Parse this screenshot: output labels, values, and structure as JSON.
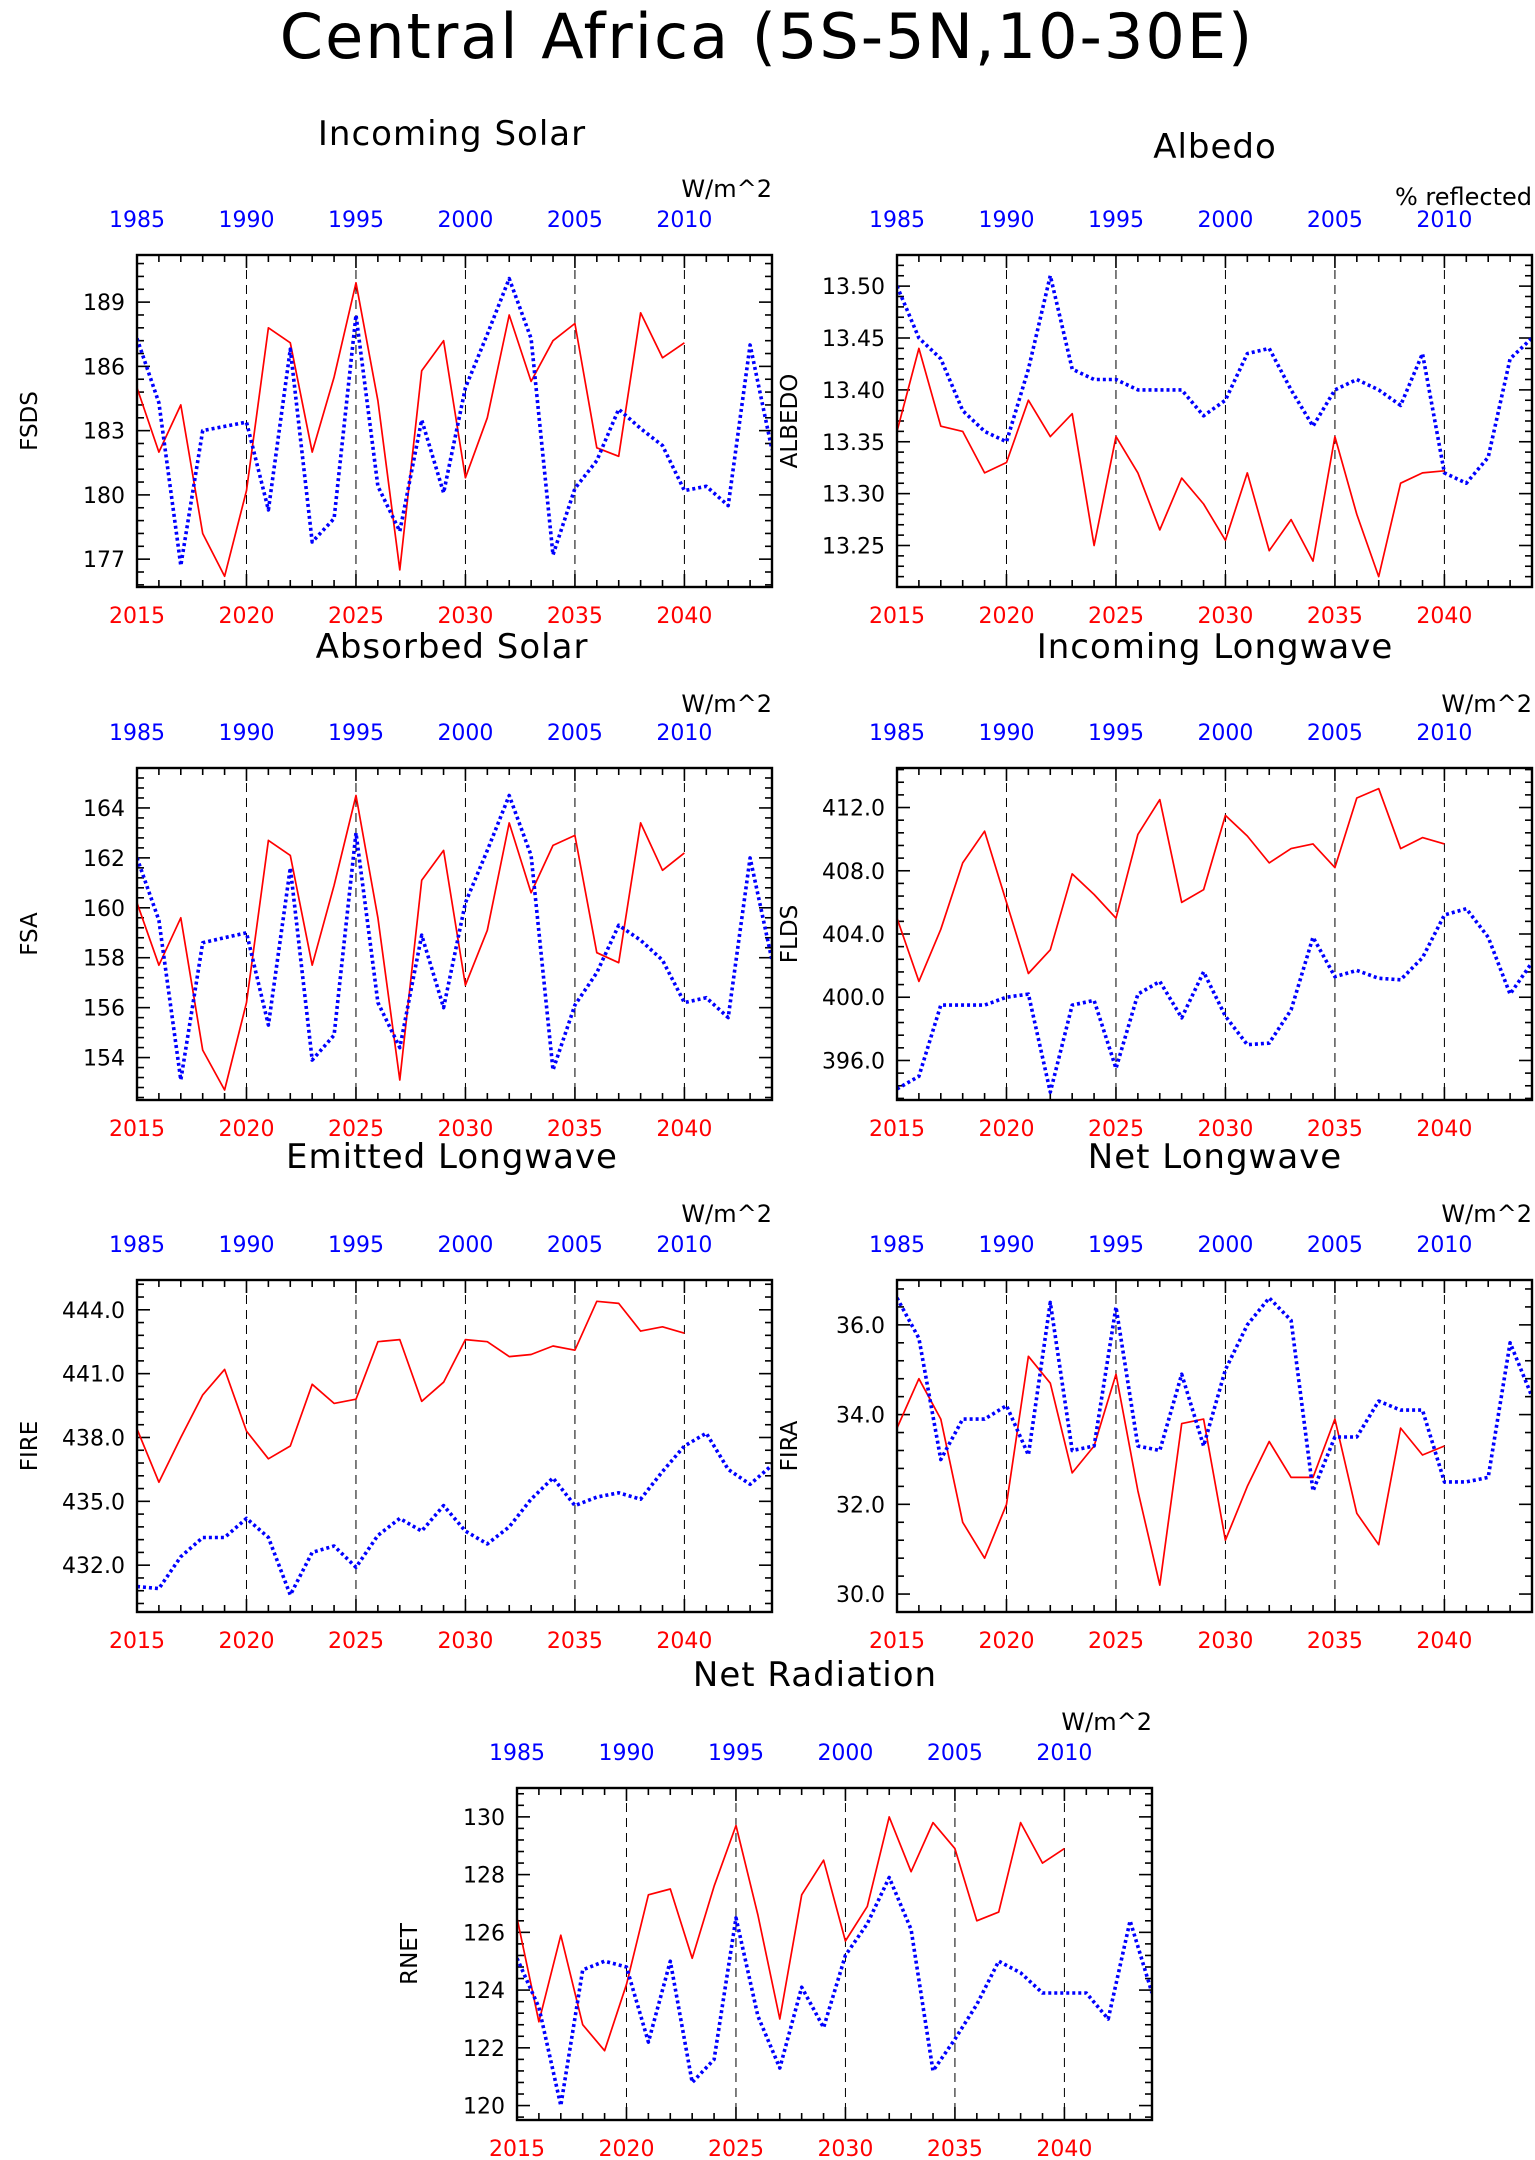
{
  "title": "Central Africa (5S-5N,10-30E)",
  "colors": {
    "series_red": "#ff0000",
    "series_blue": "#0000ff",
    "axis": "#000000"
  },
  "chart_data": [
    {
      "id": "fsds",
      "type": "line",
      "title": "Incoming Solar",
      "units": "W/m^2",
      "ylabel": "FSDS",
      "xlim": [
        2015,
        2044
      ],
      "ylim": [
        175.7,
        191.2
      ],
      "yticks": [
        177,
        180,
        183,
        186,
        189
      ],
      "ytick_labels": [
        "177",
        "180",
        "183",
        "186",
        "189"
      ],
      "x_bottom_ticks": [
        2015,
        2020,
        2025,
        2030,
        2035,
        2040
      ],
      "x_bottom_labels": [
        "2015",
        "2020",
        "2025",
        "2030",
        "2035",
        "2040"
      ],
      "x_top_labels": [
        "1985",
        "1990",
        "1995",
        "2000",
        "2005",
        "2010"
      ],
      "series": [
        {
          "color": "#ff0000",
          "style": "solid",
          "x_start": 2015,
          "values": [
            185.0,
            182.0,
            184.2,
            178.2,
            176.2,
            180.2,
            187.8,
            187.1,
            182.0,
            185.5,
            189.9,
            184.4,
            176.5,
            185.8,
            187.2,
            180.8,
            183.6,
            188.4,
            185.3,
            187.2,
            188.0,
            182.2,
            181.8,
            188.5,
            186.4,
            187.1
          ]
        },
        {
          "color": "#0000ff",
          "style": "dotted",
          "x_start": 2015,
          "values": [
            187.3,
            184.3,
            176.7,
            183.0,
            183.2,
            183.4,
            179.3,
            186.8,
            177.8,
            178.9,
            188.4,
            180.4,
            178.3,
            183.5,
            180.1,
            185.0,
            187.5,
            190.1,
            187.3,
            177.2,
            180.3,
            181.6,
            184.0,
            183.1,
            182.3,
            180.2,
            180.4,
            179.5,
            187.0,
            182.1
          ]
        }
      ]
    },
    {
      "id": "albedo",
      "type": "line",
      "title": "Albedo",
      "units": "% reflected",
      "ylabel": "ALBEDO",
      "xlim": [
        2015,
        2044
      ],
      "ylim": [
        13.21,
        13.53
      ],
      "yticks": [
        13.25,
        13.3,
        13.35,
        13.4,
        13.45,
        13.5
      ],
      "ytick_labels": [
        "13.25",
        "13.30",
        "13.35",
        "13.40",
        "13.45",
        "13.50"
      ],
      "x_bottom_ticks": [
        2015,
        2020,
        2025,
        2030,
        2035,
        2040
      ],
      "x_bottom_labels": [
        "2015",
        "2020",
        "2025",
        "2030",
        "2035",
        "2040"
      ],
      "x_top_labels": [
        "1985",
        "1990",
        "1995",
        "2000",
        "2005",
        "2010"
      ],
      "series": [
        {
          "color": "#ff0000",
          "style": "solid",
          "x_start": 2015,
          "values": [
            13.36,
            13.44,
            13.365,
            13.36,
            13.32,
            13.33,
            13.39,
            13.355,
            13.377,
            13.25,
            13.355,
            13.32,
            13.265,
            13.315,
            13.29,
            13.255,
            13.32,
            13.245,
            13.275,
            13.235,
            13.355,
            13.28,
            13.22,
            13.31,
            13.32,
            13.322
          ]
        },
        {
          "color": "#0000ff",
          "style": "dotted",
          "x_start": 2015,
          "values": [
            13.5,
            13.45,
            13.43,
            13.38,
            13.36,
            13.35,
            13.42,
            13.51,
            13.42,
            13.41,
            13.41,
            13.4,
            13.4,
            13.4,
            13.375,
            13.39,
            13.435,
            13.44,
            13.4,
            13.365,
            13.4,
            13.41,
            13.4,
            13.385,
            13.435,
            13.32,
            13.31,
            13.335,
            13.43,
            13.45
          ]
        }
      ]
    },
    {
      "id": "fsa",
      "type": "line",
      "title": "Absorbed Solar",
      "units": "W/m^2",
      "ylabel": "FSA",
      "xlim": [
        2015,
        2044
      ],
      "ylim": [
        152.3,
        165.6
      ],
      "yticks": [
        154,
        156,
        158,
        160,
        162,
        164
      ],
      "ytick_labels": [
        "154",
        "156",
        "158",
        "160",
        "162",
        "164"
      ],
      "x_bottom_ticks": [
        2015,
        2020,
        2025,
        2030,
        2035,
        2040
      ],
      "x_bottom_labels": [
        "2015",
        "2020",
        "2025",
        "2030",
        "2035",
        "2040"
      ],
      "x_top_labels": [
        "1985",
        "1990",
        "1995",
        "2000",
        "2005",
        "2010"
      ],
      "series": [
        {
          "color": "#ff0000",
          "style": "solid",
          "x_start": 2015,
          "values": [
            160.2,
            157.7,
            159.6,
            154.3,
            152.7,
            156.2,
            162.7,
            162.1,
            157.7,
            160.9,
            164.5,
            159.6,
            153.1,
            161.1,
            162.3,
            156.9,
            159.1,
            163.4,
            160.6,
            162.5,
            162.9,
            158.2,
            157.8,
            163.4,
            161.5,
            162.2
          ]
        },
        {
          "color": "#0000ff",
          "style": "dotted",
          "x_start": 2015,
          "values": [
            162.0,
            159.5,
            153.1,
            158.6,
            158.8,
            159.0,
            155.3,
            161.6,
            153.9,
            154.9,
            163.0,
            156.2,
            154.4,
            158.9,
            156.0,
            160.2,
            162.3,
            164.5,
            162.1,
            153.5,
            156.1,
            157.4,
            159.3,
            158.7,
            157.9,
            156.2,
            156.4,
            155.6,
            162.0,
            157.9
          ]
        }
      ]
    },
    {
      "id": "flds",
      "type": "line",
      "title": "Incoming Longwave",
      "units": "W/m^2",
      "ylabel": "FLDS",
      "xlim": [
        2015,
        2044
      ],
      "ylim": [
        393.5,
        414.5
      ],
      "yticks": [
        396,
        400,
        404,
        408,
        412
      ],
      "ytick_labels": [
        "396.0",
        "400.0",
        "404.0",
        "408.0",
        "412.0"
      ],
      "x_bottom_ticks": [
        2015,
        2020,
        2025,
        2030,
        2035,
        2040
      ],
      "x_bottom_labels": [
        "2015",
        "2020",
        "2025",
        "2030",
        "2035",
        "2040"
      ],
      "x_top_labels": [
        "1985",
        "1990",
        "1995",
        "2000",
        "2005",
        "2010"
      ],
      "series": [
        {
          "color": "#ff0000",
          "style": "solid",
          "x_start": 2015,
          "values": [
            405.0,
            401.0,
            404.3,
            408.5,
            410.5,
            406.0,
            401.5,
            403.0,
            407.8,
            406.5,
            405.0,
            410.3,
            412.5,
            406.0,
            406.8,
            411.5,
            410.2,
            408.5,
            409.4,
            409.7,
            408.2,
            412.6,
            413.2,
            409.4,
            410.1,
            409.7
          ]
        },
        {
          "color": "#0000ff",
          "style": "dotted",
          "x_start": 2015,
          "values": [
            394.2,
            395.0,
            399.5,
            399.5,
            399.5,
            400.0,
            400.2,
            394.0,
            399.5,
            399.8,
            395.5,
            400.2,
            401.0,
            398.7,
            401.6,
            398.8,
            397.0,
            397.1,
            399.2,
            403.8,
            401.3,
            401.7,
            401.2,
            401.1,
            402.5,
            405.2,
            405.6,
            403.8,
            400.2,
            402.2
          ]
        }
      ]
    },
    {
      "id": "fire",
      "type": "line",
      "title": "Emitted Longwave",
      "units": "W/m^2",
      "ylabel": "FIRE",
      "xlim": [
        2015,
        2044
      ],
      "ylim": [
        429.8,
        445.4
      ],
      "yticks": [
        432,
        435,
        438,
        441,
        444
      ],
      "ytick_labels": [
        "432.0",
        "435.0",
        "438.0",
        "441.0",
        "444.0"
      ],
      "x_bottom_ticks": [
        2015,
        2020,
        2025,
        2030,
        2035,
        2040
      ],
      "x_bottom_labels": [
        "2015",
        "2020",
        "2025",
        "2030",
        "2035",
        "2040"
      ],
      "x_top_labels": [
        "1985",
        "1990",
        "1995",
        "2000",
        "2005",
        "2010"
      ],
      "series": [
        {
          "color": "#ff0000",
          "style": "solid",
          "x_start": 2015,
          "values": [
            438.4,
            435.9,
            438.0,
            440.0,
            441.2,
            438.3,
            437.0,
            437.6,
            440.5,
            439.6,
            439.8,
            442.5,
            442.6,
            439.7,
            440.6,
            442.6,
            442.5,
            441.8,
            441.9,
            442.3,
            442.1,
            444.4,
            444.3,
            443.0,
            443.2,
            442.9
          ]
        },
        {
          "color": "#0000ff",
          "style": "dotted",
          "x_start": 2015,
          "values": [
            431.0,
            430.9,
            432.4,
            433.3,
            433.3,
            434.2,
            433.3,
            430.6,
            432.6,
            432.9,
            431.9,
            433.4,
            434.2,
            433.6,
            434.8,
            433.6,
            433.0,
            433.8,
            435.1,
            436.1,
            434.8,
            435.2,
            435.4,
            435.1,
            436.4,
            437.6,
            438.2,
            436.5,
            435.8,
            436.7
          ]
        }
      ]
    },
    {
      "id": "fira",
      "type": "line",
      "title": "Net Longwave",
      "units": "W/m^2",
      "ylabel": "FIRA",
      "xlim": [
        2015,
        2044
      ],
      "ylim": [
        29.6,
        37.0
      ],
      "yticks": [
        30,
        32,
        34,
        36
      ],
      "ytick_labels": [
        "30.0",
        "32.0",
        "34.0",
        "36.0"
      ],
      "x_bottom_ticks": [
        2015,
        2020,
        2025,
        2030,
        2035,
        2040
      ],
      "x_bottom_labels": [
        "2015",
        "2020",
        "2025",
        "2030",
        "2035",
        "2040"
      ],
      "x_top_labels": [
        "1985",
        "1990",
        "1995",
        "2000",
        "2005",
        "2010"
      ],
      "series": [
        {
          "color": "#ff0000",
          "style": "solid",
          "x_start": 2015,
          "values": [
            33.7,
            34.8,
            33.9,
            31.6,
            30.8,
            32.0,
            35.3,
            34.7,
            32.7,
            33.3,
            34.9,
            32.3,
            30.2,
            33.8,
            33.9,
            31.2,
            32.4,
            33.4,
            32.6,
            32.6,
            33.9,
            31.8,
            31.1,
            33.7,
            33.1,
            33.3
          ]
        },
        {
          "color": "#0000ff",
          "style": "dotted",
          "x_start": 2015,
          "values": [
            36.6,
            35.7,
            33.0,
            33.9,
            33.9,
            34.2,
            33.1,
            36.5,
            33.2,
            33.3,
            36.4,
            33.3,
            33.2,
            34.9,
            33.3,
            35.0,
            36.0,
            36.6,
            36.1,
            32.3,
            33.5,
            33.5,
            34.3,
            34.1,
            34.1,
            32.5,
            32.5,
            32.6,
            35.6,
            34.4
          ]
        }
      ]
    },
    {
      "id": "rnet",
      "type": "line",
      "title": "Net Radiation",
      "units": "W/m^2",
      "ylabel": "RNET",
      "xlim": [
        2015,
        2044
      ],
      "ylim": [
        119.5,
        131.0
      ],
      "yticks": [
        120,
        122,
        124,
        126,
        128,
        130
      ],
      "ytick_labels": [
        "120",
        "122",
        "124",
        "126",
        "128",
        "130"
      ],
      "x_bottom_ticks": [
        2015,
        2020,
        2025,
        2030,
        2035,
        2040
      ],
      "x_bottom_labels": [
        "2015",
        "2020",
        "2025",
        "2030",
        "2035",
        "2040"
      ],
      "x_top_labels": [
        "1985",
        "1990",
        "1995",
        "2000",
        "2005",
        "2010"
      ],
      "series": [
        {
          "color": "#ff0000",
          "style": "solid",
          "x_start": 2015,
          "values": [
            126.5,
            122.9,
            125.9,
            122.8,
            121.9,
            124.2,
            127.3,
            127.5,
            125.1,
            127.6,
            129.7,
            126.6,
            123.0,
            127.3,
            128.5,
            125.7,
            126.9,
            130.0,
            128.1,
            129.8,
            128.9,
            126.4,
            126.7,
            129.8,
            128.4,
            128.9
          ]
        },
        {
          "color": "#0000ff",
          "style": "dotted",
          "x_start": 2015,
          "values": [
            125.1,
            123.4,
            120.0,
            124.7,
            125.0,
            124.8,
            122.2,
            125.0,
            120.8,
            121.6,
            126.5,
            123.1,
            121.3,
            124.1,
            122.7,
            125.2,
            126.3,
            127.9,
            126.1,
            121.2,
            122.3,
            123.5,
            125.0,
            124.6,
            123.9,
            123.9,
            123.9,
            123.0,
            126.4,
            123.9
          ]
        }
      ]
    }
  ]
}
